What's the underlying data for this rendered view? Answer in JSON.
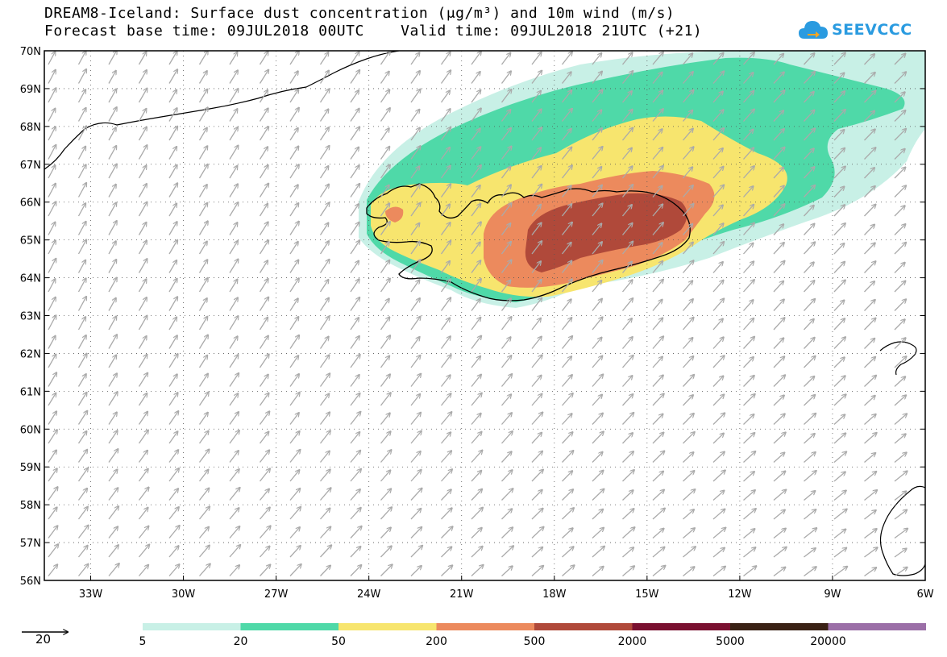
{
  "title": {
    "line1": "DREAM8-Iceland: Surface dust concentration (μg/m³) and 10m wind (m/s)",
    "line2": "Forecast base time: 09JUL2018 00UTC    Valid time: 09JUL2018 21UTC (+21)"
  },
  "logo": {
    "text": "SEEVCCC",
    "color": "#2a9be0"
  },
  "map": {
    "lat_labels": [
      "70N",
      "69N",
      "68N",
      "67N",
      "66N",
      "65N",
      "64N",
      "63N",
      "62N",
      "61N",
      "60N",
      "59N",
      "58N",
      "57N",
      "56N"
    ],
    "lon_labels": [
      "33W",
      "30W",
      "27W",
      "24W",
      "21W",
      "18W",
      "15W",
      "12W",
      "9W",
      "6W"
    ],
    "lat_range": [
      56,
      70
    ],
    "lon_range": [
      -34.5,
      -6
    ],
    "grid": "dotted",
    "wind_arrow_color": "#aaaaaa",
    "coastline_color": "#000000"
  },
  "wind_legend": {
    "label": "20"
  },
  "colorbar": {
    "labels": [
      "5",
      "20",
      "50",
      "200",
      "500",
      "2000",
      "5000",
      "20000"
    ],
    "colors": [
      "#c8f0e6",
      "#4fd9a8",
      "#f7e56e",
      "#ec8a5d",
      "#b0493a",
      "#7a1030",
      "#3a2115",
      "#9b6fa7"
    ]
  }
}
